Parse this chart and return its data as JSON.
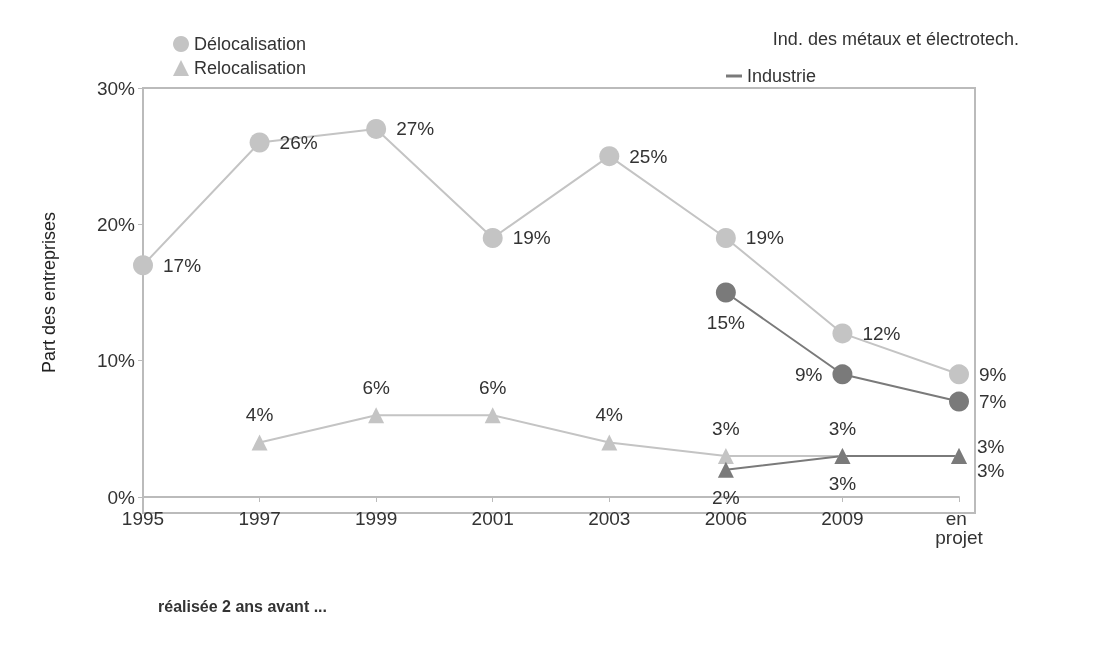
{
  "chart_data": {
    "type": "line",
    "ylabel": "Part des entreprises",
    "categories": [
      "1995",
      "1997",
      "1999",
      "2001",
      "2003",
      "2006",
      "2009",
      "en projet"
    ],
    "series": [
      {
        "name": "Délocalisation",
        "color": "#c4c4c4",
        "marker": "circle",
        "values": [
          17,
          26,
          27,
          19,
          25,
          19,
          12,
          9
        ],
        "value_labels": [
          "17%",
          "26%",
          "27%",
          "19%",
          "25%",
          "19%",
          "12%",
          "9%"
        ]
      },
      {
        "name": "Relocalisation",
        "color": "#c4c4c4",
        "marker": "triangle",
        "values": [
          null,
          4,
          6,
          6,
          4,
          3,
          3,
          3
        ],
        "value_labels": [
          null,
          "4%",
          "6%",
          "6%",
          "4%",
          "3%",
          "3%",
          "3%"
        ]
      },
      {
        "name": "Industrie",
        "color": "#7a7a7a",
        "marker": "circle",
        "values": [
          null,
          null,
          null,
          null,
          null,
          15,
          9,
          7
        ],
        "value_labels": [
          null,
          null,
          null,
          null,
          null,
          "15%",
          "9%",
          "7%"
        ]
      },
      {
        "color": "#7a7a7a",
        "marker": "triangle",
        "values": [
          null,
          null,
          null,
          null,
          null,
          2,
          3,
          3
        ],
        "value_labels": [
          null,
          null,
          null,
          null,
          null,
          "2%",
          "3%",
          "3%"
        ]
      }
    ],
    "ylim": [
      0,
      30
    ],
    "yticks": [
      {
        "value": 0,
        "label": "0%"
      },
      {
        "value": 10,
        "label": "10%"
      },
      {
        "value": 20,
        "label": "20%"
      },
      {
        "value": 30,
        "label": "30%"
      }
    ],
    "legend": "top",
    "grid": false,
    "annotations": [
      "Ind. des métaux et électrotech.",
      "réalisée 2 ans avant ..."
    ]
  }
}
